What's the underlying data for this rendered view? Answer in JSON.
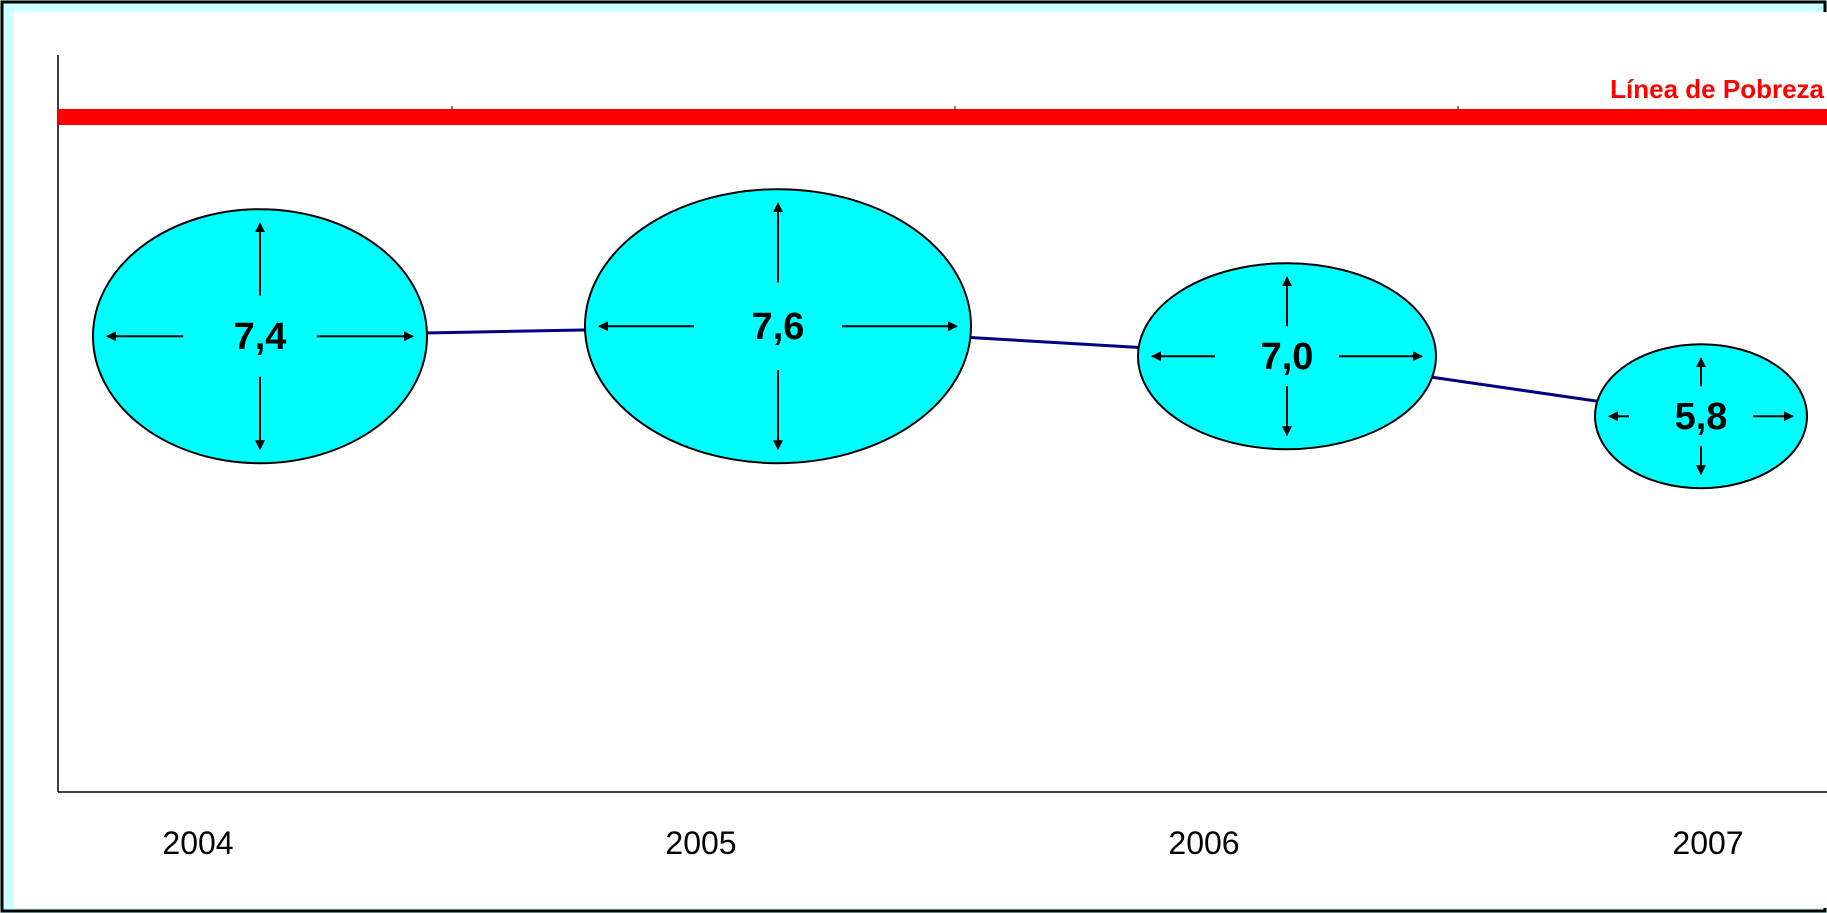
{
  "chart_data": {
    "type": "line",
    "title": "",
    "xlabel": "",
    "ylabel": "",
    "categories": [
      "2004",
      "2005",
      "2006",
      "2007"
    ],
    "series": [
      {
        "values": [
          7.4,
          7.6,
          7.0,
          5.8
        ],
        "labels": [
          "7,4",
          "7,6",
          "7,0",
          "5,8"
        ],
        "color": "#000080",
        "marker": "ellipse-with-arrows",
        "marker_color": "#00ffff"
      }
    ],
    "reference_line": {
      "label": "Línea de Pobreza",
      "color": "#ff0000"
    },
    "grid": false,
    "legend": "none"
  },
  "colors": {
    "background": "#ccffff",
    "plot_background": "#ffffff",
    "bubble_fill": "#00ffff",
    "line": "#000080",
    "poverty_line": "#ff0000"
  }
}
